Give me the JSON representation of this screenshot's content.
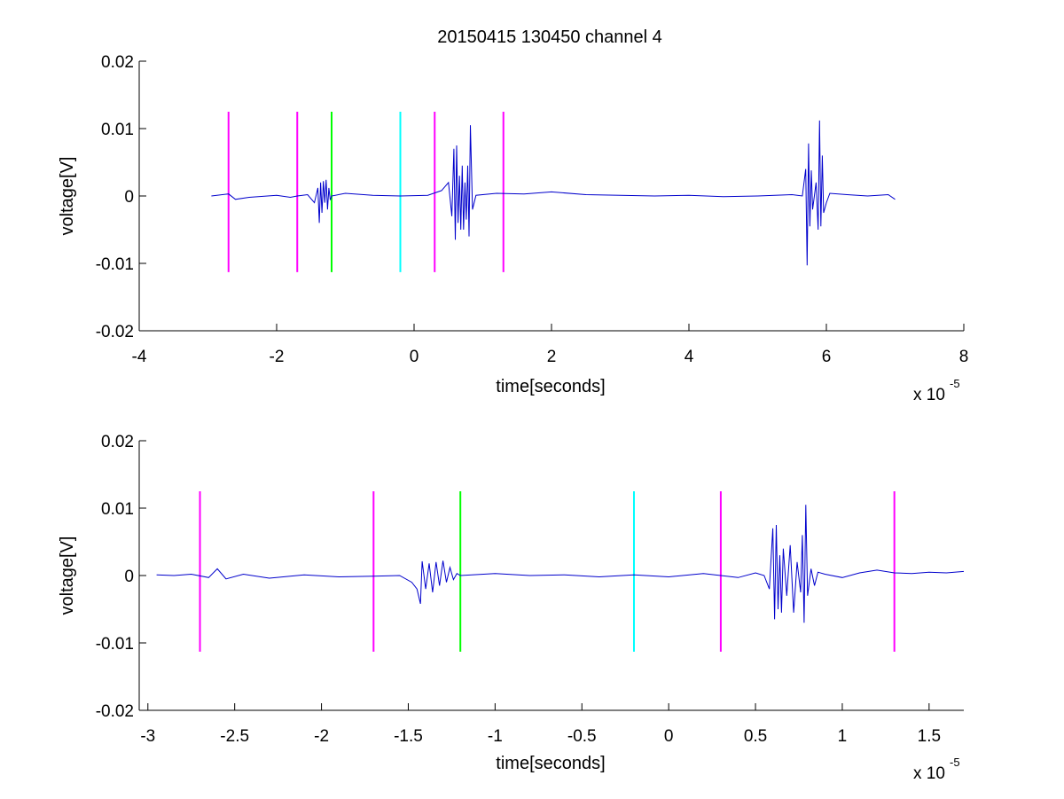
{
  "figure": {
    "title": "20150415 130450 channel 4"
  },
  "chart_data": [
    {
      "type": "line",
      "title": "20150415 130450 channel 4",
      "xlabel": "time[seconds]",
      "ylabel": "voltage[V]",
      "x_multiplier_label": {
        "base": "x 10",
        "exponent": "-5"
      },
      "x_unit_scale": 1e-05,
      "xlim": [
        -4,
        8
      ],
      "ylim": [
        -0.02,
        0.02
      ],
      "xticks": [
        -4,
        -2,
        0,
        2,
        4,
        6,
        8
      ],
      "xtick_labels": [
        "-4",
        "-2",
        "0",
        "2",
        "4",
        "6",
        "8"
      ],
      "yticks": [
        0.02,
        0.01,
        0,
        -0.01,
        -0.02
      ],
      "ytick_labels": [
        "0.02",
        "0.01",
        "0",
        "-0.01",
        "-0.02"
      ],
      "grid": false,
      "series": [
        {
          "color": "#0000cc",
          "x": [
            -2.95,
            -2.7,
            -2.6,
            -2.4,
            -2.0,
            -1.8,
            -1.7,
            -1.55,
            -1.45,
            -1.4,
            -1.38,
            -1.36,
            -1.34,
            -1.32,
            -1.3,
            -1.28,
            -1.26,
            -1.24,
            -1.22,
            -1.2,
            -1.0,
            -0.6,
            -0.2,
            0.2,
            0.4,
            0.5,
            0.55,
            0.58,
            0.6,
            0.62,
            0.64,
            0.66,
            0.68,
            0.7,
            0.72,
            0.74,
            0.76,
            0.78,
            0.8,
            0.82,
            0.85,
            0.9,
            1.2,
            1.6,
            2.0,
            2.5,
            3.0,
            3.5,
            4.0,
            4.5,
            5.0,
            5.5,
            5.65,
            5.7,
            5.72,
            5.74,
            5.76,
            5.78,
            5.8,
            5.85,
            5.88,
            5.9,
            5.92,
            5.94,
            5.96,
            6.0,
            6.05,
            6.3,
            6.6,
            6.9,
            7.0
          ],
          "y": [
            0.0,
            0.0003,
            -0.0005,
            -0.0002,
            0.0001,
            -0.0002,
            0.0,
            0.0002,
            -0.001,
            0.0012,
            -0.004,
            0.002,
            -0.0025,
            0.0022,
            -0.001,
            0.0024,
            -0.002,
            0.0012,
            -0.0006,
            0.0,
            0.0004,
            0.0001,
            0.0,
            0.0001,
            0.0008,
            0.002,
            -0.003,
            0.007,
            -0.0065,
            0.0075,
            -0.004,
            0.003,
            -0.005,
            0.0045,
            -0.005,
            0.002,
            -0.0035,
            0.0045,
            -0.006,
            0.0105,
            -0.002,
            0.0001,
            0.0004,
            0.0003,
            0.0006,
            0.0002,
            0.0001,
            0.0,
            0.0001,
            -0.0001,
            0.0,
            0.0002,
            0.0,
            0.004,
            -0.0103,
            0.0078,
            -0.0045,
            0.0038,
            -0.002,
            0.002,
            -0.005,
            0.0112,
            -0.0045,
            0.006,
            -0.0025,
            -0.001,
            0.0004,
            0.0002,
            0.0,
            0.0002,
            -0.0005
          ]
        }
      ],
      "markers": [
        {
          "x": -2.7,
          "y_range": [
            -0.0113,
            0.0125
          ],
          "color": "#ff00ff"
        },
        {
          "x": -1.7,
          "y_range": [
            -0.0113,
            0.0125
          ],
          "color": "#ff00ff"
        },
        {
          "x": -1.2,
          "y_range": [
            -0.0113,
            0.0125
          ],
          "color": "#00ff00"
        },
        {
          "x": -0.2,
          "y_range": [
            -0.0113,
            0.0125
          ],
          "color": "#00ffff"
        },
        {
          "x": 0.3,
          "y_range": [
            -0.0113,
            0.0125
          ],
          "color": "#ff00ff"
        },
        {
          "x": 1.3,
          "y_range": [
            -0.0113,
            0.0125
          ],
          "color": "#ff00ff"
        }
      ]
    },
    {
      "type": "line",
      "title": "",
      "xlabel": "time[seconds]",
      "ylabel": "voltage[V]",
      "x_multiplier_label": {
        "base": "x 10",
        "exponent": "-5"
      },
      "x_unit_scale": 1e-05,
      "xlim": [
        -3.05,
        1.7
      ],
      "ylim": [
        -0.02,
        0.02
      ],
      "xticks": [
        -3,
        -2.5,
        -2,
        -1.5,
        -1,
        -0.5,
        0,
        0.5,
        1,
        1.5
      ],
      "xtick_labels": [
        "-3",
        "-2.5",
        "-2",
        "-1.5",
        "-1",
        "-0.5",
        "0",
        "0.5",
        "1",
        "1.5"
      ],
      "yticks": [
        0.02,
        0.01,
        0,
        -0.01,
        -0.02
      ],
      "ytick_labels": [
        "0.02",
        "0.01",
        "0",
        "-0.01",
        "-0.02"
      ],
      "grid": false,
      "series": [
        {
          "color": "#0000cc",
          "x": [
            -2.95,
            -2.85,
            -2.75,
            -2.65,
            -2.6,
            -2.55,
            -2.45,
            -2.3,
            -2.1,
            -1.9,
            -1.7,
            -1.55,
            -1.48,
            -1.45,
            -1.43,
            -1.42,
            -1.4,
            -1.38,
            -1.36,
            -1.34,
            -1.32,
            -1.3,
            -1.28,
            -1.26,
            -1.24,
            -1.22,
            -1.2,
            -1.0,
            -0.8,
            -0.6,
            -0.4,
            -0.2,
            0.0,
            0.2,
            0.4,
            0.5,
            0.55,
            0.58,
            0.6,
            0.61,
            0.62,
            0.63,
            0.64,
            0.65,
            0.66,
            0.68,
            0.7,
            0.72,
            0.74,
            0.76,
            0.77,
            0.78,
            0.79,
            0.8,
            0.82,
            0.84,
            0.86,
            0.9,
            1.0,
            1.1,
            1.2,
            1.3,
            1.4,
            1.5,
            1.6,
            1.7
          ],
          "y": [
            0.0001,
            0.0,
            0.0002,
            -0.0003,
            0.001,
            -0.0005,
            0.0002,
            -0.0004,
            0.0001,
            -0.0002,
            -0.0001,
            0.0,
            -0.001,
            -0.002,
            -0.0042,
            0.0021,
            -0.002,
            0.0018,
            -0.0025,
            0.002,
            -0.0015,
            0.0022,
            -0.001,
            0.0012,
            -0.0006,
            0.0003,
            0.0,
            0.0003,
            0.0,
            0.0001,
            -0.0002,
            0.0001,
            -0.0002,
            0.0003,
            -0.0003,
            0.0004,
            0.0,
            -0.002,
            0.007,
            -0.0065,
            0.0075,
            -0.005,
            0.003,
            -0.0055,
            0.004,
            -0.003,
            0.0045,
            -0.0055,
            0.002,
            -0.0025,
            0.006,
            -0.007,
            0.0105,
            -0.003,
            0.001,
            -0.0015,
            0.0005,
            0.0002,
            -0.0003,
            0.0004,
            0.0008,
            0.0004,
            0.0003,
            0.0005,
            0.0004,
            0.0006
          ]
        }
      ],
      "markers": [
        {
          "x": -2.7,
          "y_range": [
            -0.0113,
            0.0125
          ],
          "color": "#ff00ff"
        },
        {
          "x": -1.7,
          "y_range": [
            -0.0113,
            0.0125
          ],
          "color": "#ff00ff"
        },
        {
          "x": -1.2,
          "y_range": [
            -0.0113,
            0.0125
          ],
          "color": "#00ff00"
        },
        {
          "x": -0.2,
          "y_range": [
            -0.0113,
            0.0125
          ],
          "color": "#00ffff"
        },
        {
          "x": 0.3,
          "y_range": [
            -0.0113,
            0.0125
          ],
          "color": "#ff00ff"
        },
        {
          "x": 1.3,
          "y_range": [
            -0.0113,
            0.0125
          ],
          "color": "#ff00ff"
        }
      ]
    }
  ]
}
